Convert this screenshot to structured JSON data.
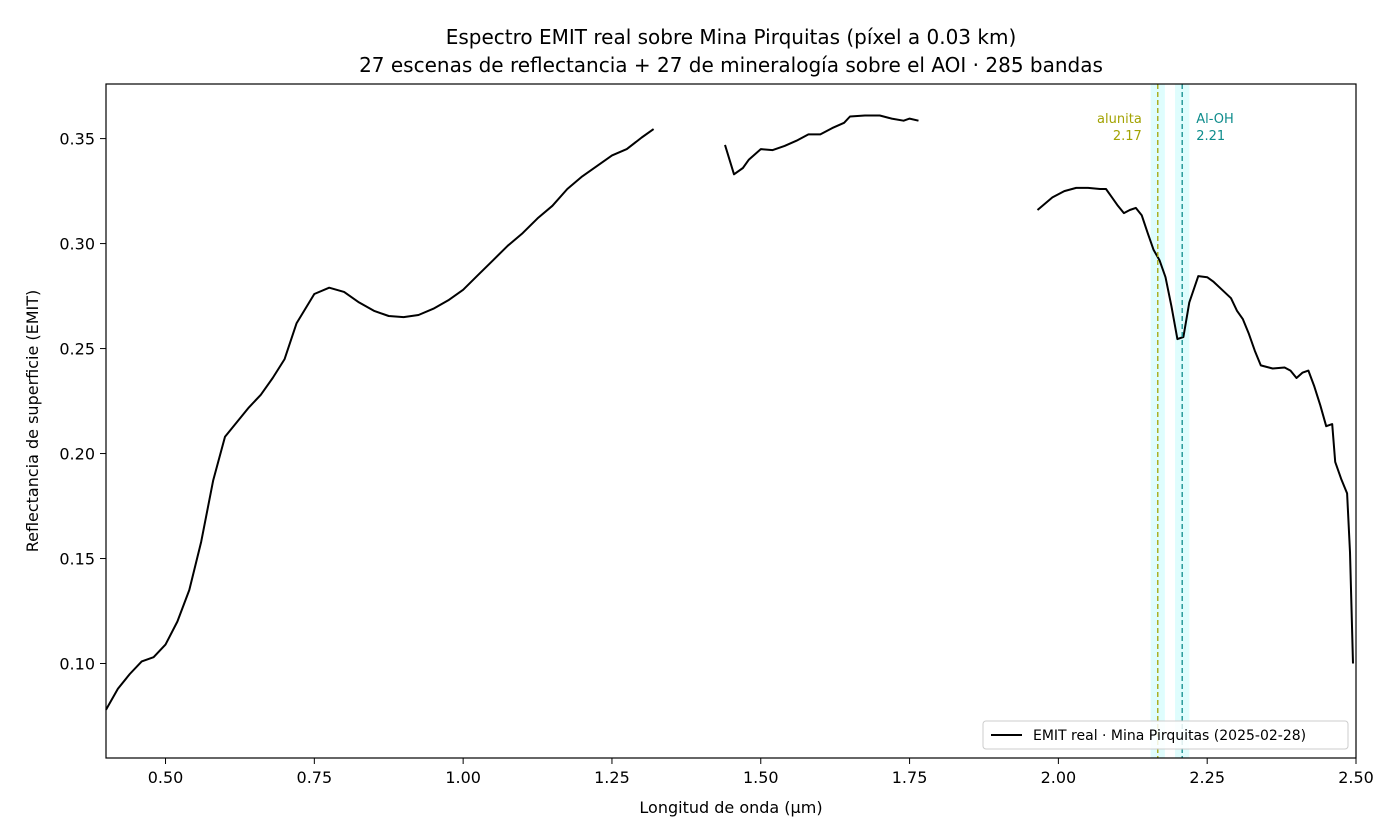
{
  "chart_data": {
    "type": "line",
    "title": "Espectro EMIT real sobre Mina Pirquitas (píxel a 0.03 km)",
    "subtitle": "27 escenas de reflectancia + 27 de mineralogía sobre el AOI · 285 bandas",
    "xlabel": "Longitud de onda (µm)",
    "ylabel": "Reflectancia de superficie (EMIT)",
    "xlim": [
      0.4,
      2.5
    ],
    "ylim": [
      0.055,
      0.376
    ],
    "x_ticks": [
      0.5,
      0.75,
      1.0,
      1.25,
      1.5,
      1.75,
      2.0,
      2.25,
      2.5
    ],
    "x_tick_labels": [
      "0.50",
      "0.75",
      "1.00",
      "1.25",
      "1.50",
      "1.75",
      "2.00",
      "2.25",
      "2.50"
    ],
    "y_ticks": [
      0.1,
      0.15,
      0.2,
      0.25,
      0.3,
      0.35
    ],
    "y_tick_labels": [
      "0.10",
      "0.15",
      "0.20",
      "0.25",
      "0.30",
      "0.35"
    ],
    "grid": false,
    "legend": {
      "placement": "bottom-right",
      "entries": [
        "EMIT real · Mina Pirquitas (2025-02-28)"
      ]
    },
    "series": [
      {
        "name": "EMIT real · Mina Pirquitas (2025-02-28)",
        "color": "#000000",
        "segments": [
          [
            [
              0.4,
              0.078
            ],
            [
              0.42,
              0.088
            ],
            [
              0.44,
              0.095
            ],
            [
              0.46,
              0.101
            ],
            [
              0.48,
              0.103
            ],
            [
              0.5,
              0.109
            ],
            [
              0.52,
              0.12
            ],
            [
              0.54,
              0.135
            ],
            [
              0.56,
              0.158
            ],
            [
              0.58,
              0.187
            ],
            [
              0.6,
              0.208
            ],
            [
              0.62,
              0.215
            ],
            [
              0.64,
              0.222
            ],
            [
              0.66,
              0.228
            ],
            [
              0.68,
              0.236
            ],
            [
              0.7,
              0.245
            ],
            [
              0.72,
              0.262
            ],
            [
              0.75,
              0.276
            ],
            [
              0.775,
              0.279
            ],
            [
              0.8,
              0.277
            ],
            [
              0.825,
              0.272
            ],
            [
              0.85,
              0.268
            ],
            [
              0.875,
              0.2655
            ],
            [
              0.9,
              0.265
            ],
            [
              0.925,
              0.266
            ],
            [
              0.95,
              0.269
            ],
            [
              0.975,
              0.273
            ],
            [
              1.0,
              0.278
            ],
            [
              1.025,
              0.285
            ],
            [
              1.05,
              0.292
            ],
            [
              1.075,
              0.299
            ],
            [
              1.1,
              0.305
            ],
            [
              1.125,
              0.312
            ],
            [
              1.15,
              0.318
            ],
            [
              1.175,
              0.326
            ],
            [
              1.2,
              0.332
            ],
            [
              1.225,
              0.337
            ],
            [
              1.25,
              0.342
            ],
            [
              1.275,
              0.345
            ],
            [
              1.3,
              0.3505
            ],
            [
              1.32,
              0.3545
            ]
          ],
          [
            [
              1.44,
              0.347
            ],
            [
              1.455,
              0.333
            ],
            [
              1.47,
              0.336
            ],
            [
              1.48,
              0.34
            ],
            [
              1.5,
              0.345
            ],
            [
              1.52,
              0.3445
            ],
            [
              1.54,
              0.3465
            ],
            [
              1.56,
              0.349
            ],
            [
              1.58,
              0.352
            ],
            [
              1.6,
              0.352
            ],
            [
              1.62,
              0.355
            ],
            [
              1.64,
              0.3575
            ],
            [
              1.65,
              0.3605
            ],
            [
              1.675,
              0.361
            ],
            [
              1.7,
              0.361
            ],
            [
              1.72,
              0.3595
            ],
            [
              1.74,
              0.3585
            ],
            [
              1.75,
              0.3595
            ],
            [
              1.765,
              0.3585
            ]
          ],
          [
            [
              1.965,
              0.316
            ],
            [
              1.99,
              0.322
            ],
            [
              2.01,
              0.325
            ],
            [
              2.03,
              0.3265
            ],
            [
              2.05,
              0.3265
            ],
            [
              2.07,
              0.326
            ],
            [
              2.08,
              0.326
            ],
            [
              2.09,
              0.322
            ],
            [
              2.1,
              0.318
            ],
            [
              2.11,
              0.3145
            ],
            [
              2.12,
              0.316
            ],
            [
              2.13,
              0.317
            ],
            [
              2.14,
              0.3135
            ],
            [
              2.15,
              0.305
            ],
            [
              2.16,
              0.297
            ],
            [
              2.17,
              0.292
            ],
            [
              2.18,
              0.284
            ],
            [
              2.19,
              0.27
            ],
            [
              2.2,
              0.2545
            ],
            [
              2.21,
              0.2555
            ],
            [
              2.22,
              0.272
            ],
            [
              2.235,
              0.2845
            ],
            [
              2.25,
              0.284
            ],
            [
              2.26,
              0.282
            ],
            [
              2.275,
              0.278
            ],
            [
              2.29,
              0.274
            ],
            [
              2.3,
              0.268
            ],
            [
              2.31,
              0.264
            ],
            [
              2.32,
              0.257
            ],
            [
              2.33,
              0.249
            ],
            [
              2.34,
              0.242
            ],
            [
              2.36,
              0.2405
            ],
            [
              2.38,
              0.241
            ],
            [
              2.39,
              0.2395
            ],
            [
              2.4,
              0.236
            ],
            [
              2.41,
              0.2385
            ],
            [
              2.42,
              0.2395
            ],
            [
              2.43,
              0.232
            ],
            [
              2.44,
              0.223
            ],
            [
              2.45,
              0.213
            ],
            [
              2.46,
              0.214
            ],
            [
              2.465,
              0.196
            ],
            [
              2.475,
              0.188
            ],
            [
              2.485,
              0.181
            ],
            [
              2.49,
              0.153
            ],
            [
              2.495,
              0.1
            ]
          ]
        ]
      }
    ],
    "annotations": [
      {
        "label": "alunita",
        "value_label": "2.17",
        "x": 2.167,
        "color": "#a3a303",
        "band_halfwidth": 0.012,
        "label_side": "left"
      },
      {
        "label": "Al-OH",
        "value_label": "2.21",
        "x": 2.208,
        "color": "#0e8c8c",
        "band_halfwidth": 0.012,
        "label_side": "right"
      }
    ],
    "band_color": "#b8fbfb"
  }
}
